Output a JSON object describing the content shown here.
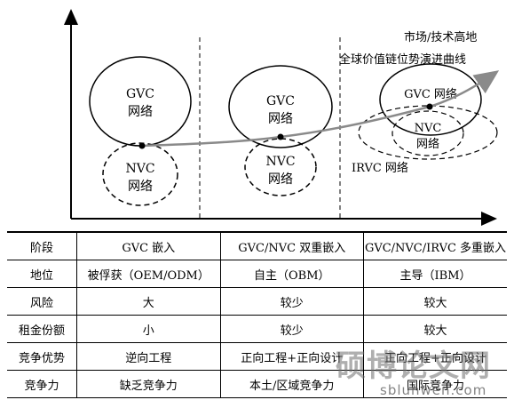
{
  "diagram": {
    "curve_label_top": "市场/技术高地",
    "curve_label_bottom": "全球价值链位势演进曲线",
    "stage1": {
      "gvc_line1": "GVC",
      "gvc_line2": "网络",
      "nvc_line1": "NVC",
      "nvc_line2": "网络"
    },
    "stage2": {
      "gvc_line1": "GVC",
      "gvc_line2": "网络",
      "nvc_line1": "NVC",
      "nvc_line2": "网络"
    },
    "stage3": {
      "gvc": "GVC 网络",
      "nvc_line1": "NVC",
      "nvc_line2": "网络",
      "irvc": "IRVC 网络"
    },
    "colors": {
      "curve": "#8a8a8a",
      "ink": "#000000"
    }
  },
  "table": {
    "rows": [
      {
        "label": "阶段",
        "cells": [
          "GVC 嵌入",
          "GVC/NVC 双重嵌入",
          "GVC/NVC/IRVC 多重嵌入"
        ]
      },
      {
        "label": "地位",
        "cells": [
          "被俘获（OEM/ODM）",
          "自主（OBM）",
          "主导（IBM）"
        ]
      },
      {
        "label": "风险",
        "cells": [
          "大",
          "较少",
          "较大"
        ]
      },
      {
        "label": "租金份额",
        "cells": [
          "小",
          "较少",
          "较大"
        ]
      },
      {
        "label": "竞争优势",
        "cells": [
          "逆向工程",
          "正向工程+正向设计",
          "正向工程+正向设计"
        ]
      },
      {
        "label": "竞争力",
        "cells": [
          "缺乏竞争力",
          "本土/区域竞争力",
          "国际竞争力"
        ]
      }
    ]
  },
  "watermark": {
    "title": "硕博论文网",
    "url": "sblunwen.com"
  }
}
